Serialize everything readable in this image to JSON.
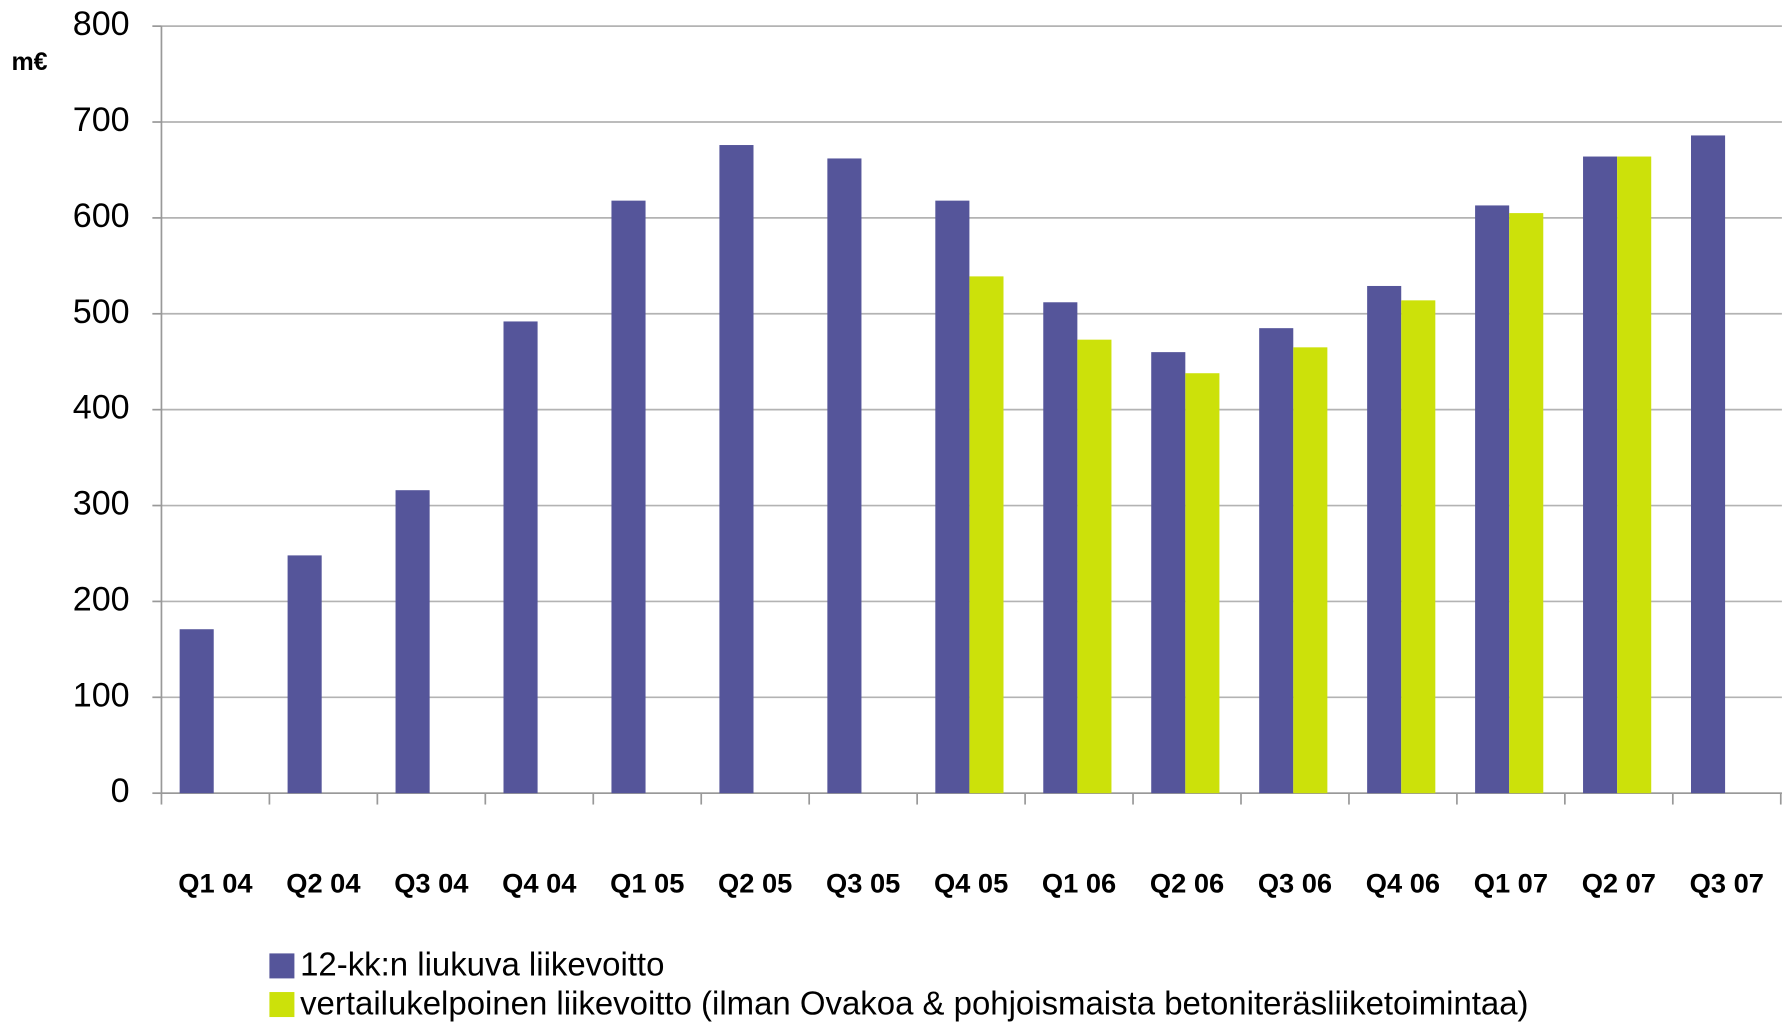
{
  "chart_data": {
    "type": "bar",
    "y_label": "m€",
    "categories": [
      "Q1 04",
      "Q2 04",
      "Q3 04",
      "Q4 04",
      "Q1 05",
      "Q2 05",
      "Q3 05",
      "Q4 05",
      "Q1 06",
      "Q2 06",
      "Q3 06",
      "Q4 06",
      "Q1 07",
      "Q2 07",
      "Q3 07"
    ],
    "series": [
      {
        "name": "12-kk:n liukuva liikevoitto",
        "color": "#55559a",
        "values": [
          171,
          248,
          316,
          492,
          618,
          676,
          662,
          618,
          512,
          460,
          485,
          529,
          613,
          664,
          686
        ]
      },
      {
        "name": "vertailukelpoinen liikevoitto (ilman Ovakoa & pohjoismaista betoniteräsliiketoimintaa)",
        "color": "#cce10a",
        "values": [
          null,
          null,
          null,
          null,
          null,
          null,
          null,
          539,
          473,
          438,
          465,
          514,
          605,
          664,
          null
        ]
      }
    ],
    "ylim": [
      0,
      800
    ],
    "yticks": [
      0,
      100,
      200,
      300,
      400,
      500,
      600,
      700,
      800
    ],
    "grid": true
  }
}
